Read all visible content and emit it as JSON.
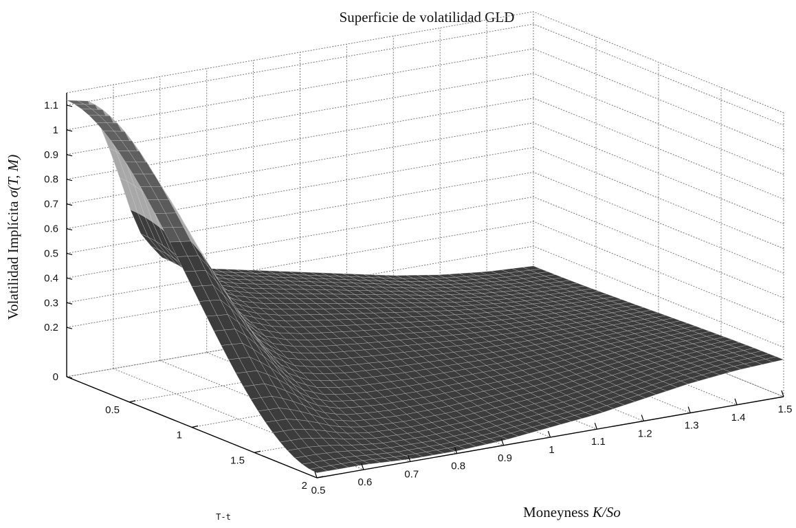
{
  "chart_data": {
    "type": "surface3d",
    "title": "Superficie de volatilidad GLD",
    "zlabel_prefix": "Volatilidad Implícita ",
    "zlabel_symbol": "σ(T, M)",
    "xlabel_prefix": "Moneyness ",
    "xlabel_symbol": "K/So",
    "ylabel": "T-t",
    "x_ticks": [
      "0.5",
      "0.6",
      "0.7",
      "0.8",
      "0.9",
      "1",
      "1.1",
      "1.2",
      "1.3",
      "1.4",
      "1.5"
    ],
    "x_tick_values": [
      0.5,
      0.6,
      0.7,
      0.8,
      0.9,
      1.0,
      1.1,
      1.2,
      1.3,
      1.4,
      1.5
    ],
    "y_ticks": [
      "0.5",
      "1",
      "1.5",
      "2"
    ],
    "y_tick_values": [
      0.5,
      1.0,
      1.5,
      2.0
    ],
    "z_ticks": [
      "0",
      "0.2",
      "0.3",
      "0.4",
      "0.5",
      "0.6",
      "0.7",
      "0.8",
      "0.9",
      "1",
      "1.1"
    ],
    "z_tick_values": [
      0,
      0.2,
      0.3,
      0.4,
      0.5,
      0.6,
      0.7,
      0.8,
      0.9,
      1.0,
      1.1
    ],
    "xlim": [
      0.5,
      1.5
    ],
    "ylim": [
      0.0,
      2.0
    ],
    "zlim": [
      0.0,
      1.15
    ],
    "grid": true,
    "surface_color": "#3c3c3c",
    "surface_profile_T_min": {
      "moneyness": [
        0.5,
        0.55,
        0.6,
        0.65,
        0.7,
        0.75,
        0.8,
        0.9,
        1.0,
        1.1,
        1.2,
        1.3,
        1.4,
        1.5
      ],
      "vol": [
        1.12,
        1.1,
        0.85,
        0.55,
        0.42,
        0.37,
        0.34,
        0.3,
        0.26,
        0.22,
        0.18,
        0.15,
        0.13,
        0.12
      ]
    },
    "surface_profile_T_max": {
      "moneyness": [
        0.5,
        0.6,
        0.7,
        0.8,
        0.9,
        1.0,
        1.1,
        1.2,
        1.3,
        1.4,
        1.5
      ],
      "vol": [
        0.02,
        0.02,
        0.01,
        0.01,
        0.02,
        0.04,
        0.06,
        0.09,
        0.12,
        0.14,
        0.15
      ]
    }
  }
}
